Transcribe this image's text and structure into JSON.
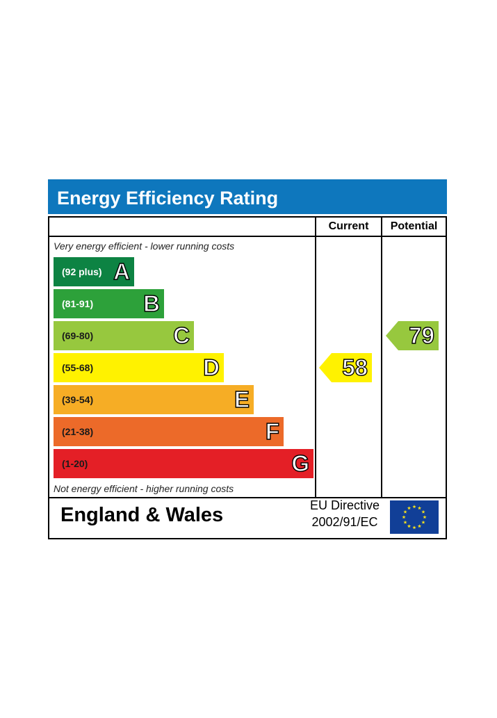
{
  "title": "Energy Efficiency Rating",
  "columns": {
    "current": "Current",
    "potential": "Potential"
  },
  "captions": {
    "top": "Very energy efficient - lower running costs",
    "bottom": "Not energy efficient - higher running costs"
  },
  "footer": {
    "country": "England & Wales",
    "directive_line1": "EU Directive",
    "directive_line2": "2002/91/EC"
  },
  "colors": {
    "title_bar": "#0e77bd",
    "flag": "#113f97",
    "flag_stars": "#f7e21b"
  },
  "chart_data": {
    "type": "bar",
    "bands": [
      {
        "range": "(92 plus)",
        "letter": "A",
        "min": 92,
        "max": 100,
        "color": "#0d8343",
        "text_color": "#ffffff"
      },
      {
        "range": "(81-91)",
        "letter": "B",
        "min": 81,
        "max": 91,
        "color": "#2da13a",
        "text_color": "#ffffff"
      },
      {
        "range": "(69-80)",
        "letter": "C",
        "min": 69,
        "max": 80,
        "color": "#97c83e",
        "text_color": "#1a1a1a"
      },
      {
        "range": "(55-68)",
        "letter": "D",
        "min": 55,
        "max": 68,
        "color": "#fff200",
        "text_color": "#1a1a1a"
      },
      {
        "range": "(39-54)",
        "letter": "E",
        "min": 39,
        "max": 54,
        "color": "#f6ad25",
        "text_color": "#1a1a1a"
      },
      {
        "range": "(21-38)",
        "letter": "F",
        "min": 21,
        "max": 38,
        "color": "#ec6a29",
        "text_color": "#1a1a1a"
      },
      {
        "range": "(1-20)",
        "letter": "G",
        "min": 1,
        "max": 20,
        "color": "#e41f26",
        "text_color": "#1a1a1a"
      }
    ],
    "current": {
      "value": 58,
      "band": "D",
      "color": "#fff200"
    },
    "potential": {
      "value": 79,
      "band": "C",
      "color": "#97c83e"
    }
  }
}
